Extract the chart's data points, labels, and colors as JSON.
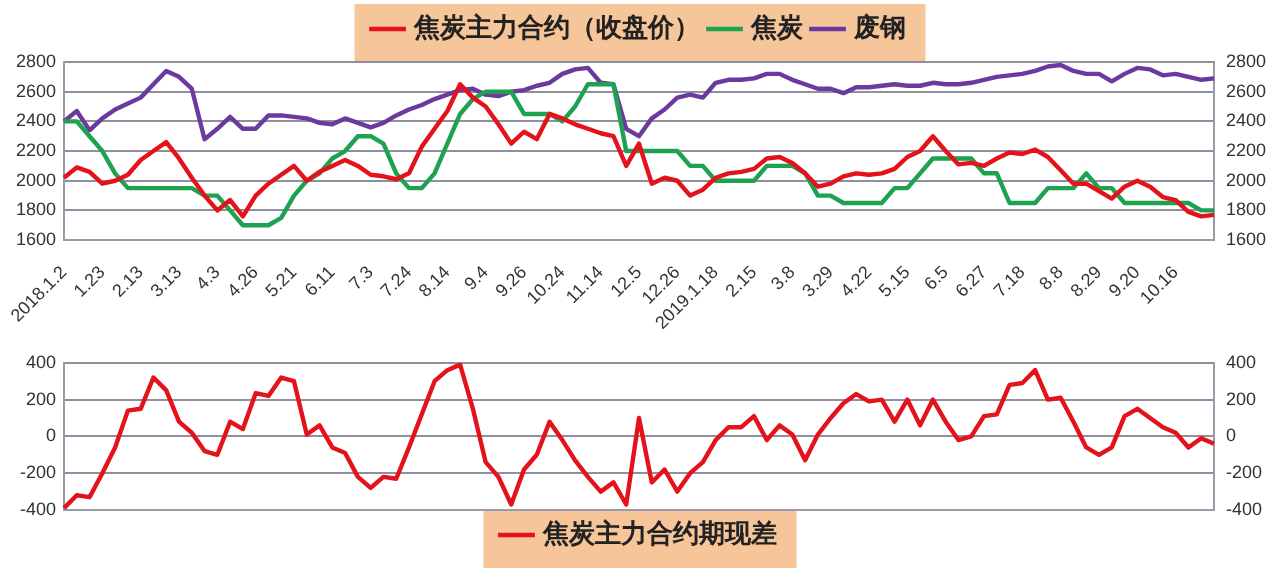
{
  "chart_data": [
    {
      "type": "line",
      "categories": [
        "2018.1.2",
        null,
        null,
        "1.23",
        null,
        null,
        "2.13",
        null,
        null,
        "3.13",
        null,
        null,
        "4.3",
        null,
        null,
        "4.26",
        null,
        null,
        "5.21",
        null,
        null,
        "6.11",
        null,
        null,
        "7.3",
        null,
        null,
        "7.24",
        null,
        null,
        "8.14",
        null,
        null,
        "9.4",
        null,
        null,
        "9.26",
        null,
        null,
        "10.24",
        null,
        null,
        "11.14",
        null,
        null,
        "12.5",
        null,
        null,
        "12.26",
        null,
        null,
        "2019.1.18",
        null,
        null,
        "2.15",
        null,
        null,
        "3.8",
        null,
        null,
        "3.29",
        null,
        null,
        "4.22",
        null,
        null,
        "5.15",
        null,
        null,
        "6.5",
        null,
        null,
        "6.27",
        null,
        null,
        "7.18",
        null,
        null,
        "8.8",
        null,
        null,
        "8.29",
        null,
        null,
        "9.20",
        null,
        null,
        "10.16",
        null,
        null,
        null
      ],
      "series": [
        {
          "name": "焦炭主力合约（收盘价）",
          "color": "#e3121b",
          "values": [
            2020,
            2090,
            2060,
            1980,
            2000,
            2040,
            2140,
            2200,
            2260,
            2150,
            2020,
            1900,
            1800,
            1870,
            1760,
            1900,
            1980,
            2040,
            2100,
            2000,
            2060,
            2100,
            2140,
            2100,
            2040,
            2030,
            2010,
            2050,
            2230,
            2350,
            2470,
            2650,
            2560,
            2500,
            2380,
            2250,
            2330,
            2280,
            2450,
            2420,
            2380,
            2350,
            2320,
            2300,
            2100,
            2250,
            1980,
            2020,
            2000,
            1900,
            1940,
            2020,
            2050,
            2060,
            2080,
            2150,
            2160,
            2120,
            2050,
            1960,
            1980,
            2030,
            2050,
            2040,
            2050,
            2080,
            2160,
            2200,
            2300,
            2200,
            2110,
            2120,
            2100,
            2150,
            2190,
            2180,
            2210,
            2160,
            2070,
            1980,
            1980,
            1930,
            1880,
            1960,
            2000,
            1960,
            1890,
            1870,
            1790,
            1760,
            1770
          ]
        },
        {
          "name": "焦炭",
          "color": "#1fa24f",
          "values": [
            2400,
            2400,
            2300,
            2200,
            2050,
            1950,
            1950,
            1950,
            1950,
            1950,
            1950,
            1900,
            1900,
            1800,
            1700,
            1700,
            1700,
            1750,
            1900,
            2000,
            2050,
            2150,
            2200,
            2300,
            2300,
            2250,
            2050,
            1950,
            1950,
            2050,
            2250,
            2450,
            2550,
            2600,
            2600,
            2600,
            2450,
            2450,
            2450,
            2400,
            2500,
            2650,
            2650,
            2650,
            2200,
            2200,
            2200,
            2200,
            2200,
            2100,
            2100,
            2000,
            2000,
            2000,
            2000,
            2100,
            2100,
            2100,
            2050,
            1900,
            1900,
            1850,
            1850,
            1850,
            1850,
            1950,
            1950,
            2050,
            2150,
            2150,
            2150,
            2150,
            2050,
            2050,
            1850,
            1850,
            1850,
            1950,
            1950,
            1950,
            2050,
            1950,
            1950,
            1850,
            1850,
            1850,
            1850,
            1850,
            1850,
            1800,
            1800
          ]
        },
        {
          "name": "废钢",
          "color": "#6a3a9e",
          "values": [
            2400,
            2470,
            2340,
            2420,
            2480,
            2520,
            2560,
            2650,
            2740,
            2700,
            2620,
            2280,
            2350,
            2430,
            2350,
            2350,
            2440,
            2440,
            2430,
            2420,
            2390,
            2380,
            2420,
            2390,
            2360,
            2390,
            2440,
            2480,
            2510,
            2550,
            2580,
            2610,
            2620,
            2580,
            2570,
            2600,
            2610,
            2640,
            2660,
            2720,
            2750,
            2760,
            2660,
            2650,
            2350,
            2300,
            2420,
            2480,
            2560,
            2580,
            2560,
            2660,
            2680,
            2680,
            2690,
            2720,
            2720,
            2680,
            2650,
            2620,
            2620,
            2590,
            2630,
            2630,
            2640,
            2650,
            2640,
            2640,
            2660,
            2650,
            2650,
            2660,
            2680,
            2700,
            2710,
            2720,
            2740,
            2770,
            2780,
            2740,
            2720,
            2720,
            2670,
            2720,
            2760,
            2750,
            2710,
            2720,
            2700,
            2680,
            2690
          ]
        }
      ],
      "ylim": [
        1600,
        2800
      ],
      "yticks": [
        1600,
        1800,
        2000,
        2200,
        2400,
        2600,
        2800
      ],
      "y2lim": [
        1600,
        2800
      ],
      "y2ticks": [
        1600,
        1800,
        2000,
        2200,
        2400,
        2600,
        2800
      ],
      "grid": "y",
      "legend": "top"
    },
    {
      "type": "line",
      "categories": [
        "2018.1.2",
        null,
        null,
        "1.23",
        null,
        null,
        "2.13",
        null,
        null,
        "3.13",
        null,
        null,
        "4.3",
        null,
        null,
        "4.26",
        null,
        null,
        "5.21",
        null,
        null,
        "6.11",
        null,
        null,
        "7.3",
        null,
        null,
        "7.24",
        null,
        null,
        "8.14",
        null,
        null,
        "9.4",
        null,
        null,
        "9.26",
        null,
        null,
        "10.24",
        null,
        null,
        "11.14",
        null,
        null,
        "12.5",
        null,
        null,
        "12.26",
        null,
        null,
        "2019.1.18",
        null,
        null,
        "2.15",
        null,
        null,
        "3.8",
        null,
        null,
        "3.29",
        null,
        null,
        "4.22",
        null,
        null,
        "5.15",
        null,
        null,
        "6.5",
        null,
        null,
        "6.27",
        null,
        null,
        "7.18",
        null,
        null,
        "8.8",
        null,
        null,
        "8.29",
        null,
        null,
        "9.20",
        null,
        null,
        "10.16",
        null,
        null,
        null
      ],
      "series": [
        {
          "name": "焦炭主力合约期现差",
          "color": "#e3121b",
          "values": [
            -390,
            -320,
            -330,
            -200,
            -60,
            140,
            150,
            320,
            250,
            80,
            20,
            -80,
            -100,
            80,
            40,
            235,
            220,
            320,
            300,
            10,
            60,
            -60,
            -90,
            -220,
            -280,
            -220,
            -230,
            -60,
            120,
            300,
            360,
            390,
            150,
            -140,
            -220,
            -370,
            -180,
            -100,
            80,
            -20,
            -130,
            -220,
            -300,
            -250,
            -370,
            100,
            -250,
            -180,
            -300,
            -200,
            -140,
            -20,
            50,
            50,
            110,
            -20,
            60,
            10,
            -130,
            10,
            100,
            180,
            230,
            190,
            200,
            80,
            200,
            60,
            200,
            80,
            -20,
            0,
            110,
            120,
            280,
            290,
            360,
            200,
            210,
            80,
            -60,
            -100,
            -60,
            110,
            150,
            100,
            50,
            20,
            -60,
            -10,
            -40
          ]
        }
      ],
      "ylim": [
        -400,
        400
      ],
      "yticks": [
        -400,
        -200,
        0,
        200,
        400
      ],
      "y2lim": [
        -400,
        400
      ],
      "y2ticks": [
        -400,
        -200,
        0,
        200,
        400
      ],
      "grid": "y",
      "legend": "bottom",
      "tick_labels": "y"
    }
  ]
}
